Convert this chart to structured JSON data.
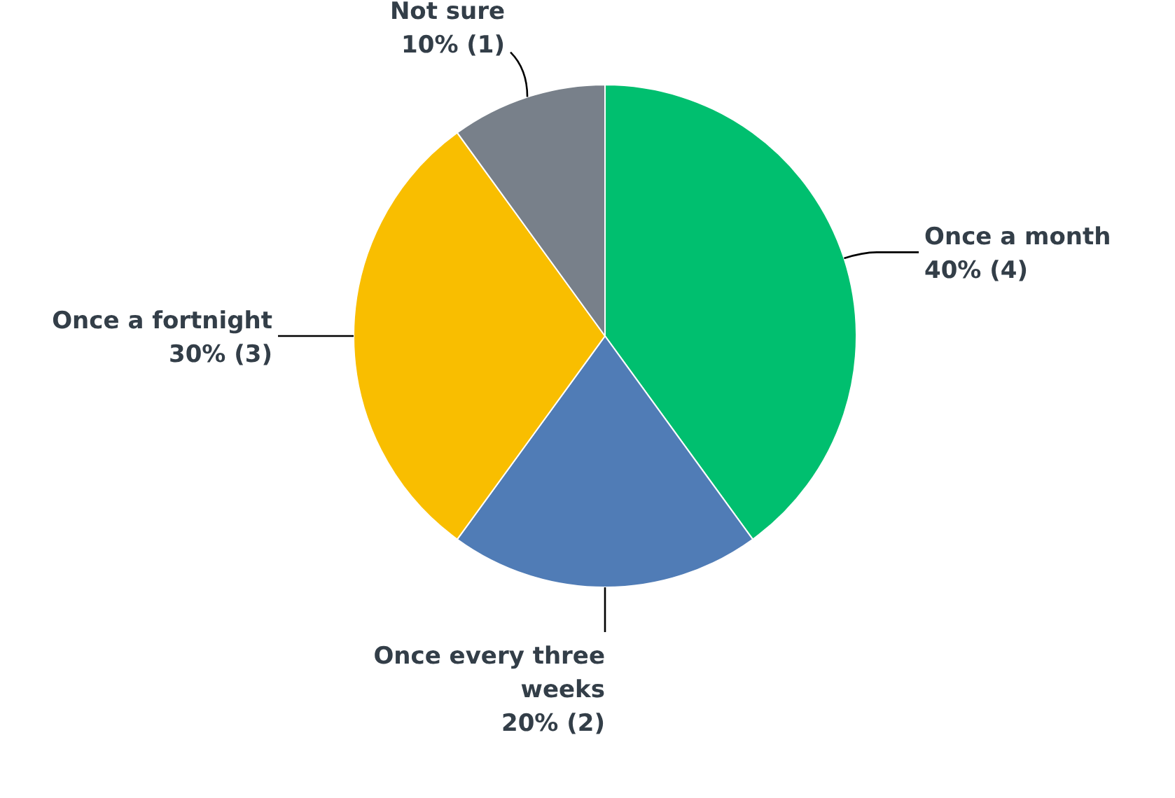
{
  "chart_data": {
    "type": "pie",
    "categories": [
      "Once a month",
      "Once every three weeks",
      "Once a fortnight",
      "Not sure"
    ],
    "values": [
      40,
      20,
      30,
      10
    ],
    "colors": [
      "#00bf6f",
      "#507cb6",
      "#f9be00",
      "#78808a"
    ],
    "value_labels": [
      "40% (4)",
      "20% (2)",
      "30% (3)",
      "10% (1)"
    ]
  }
}
